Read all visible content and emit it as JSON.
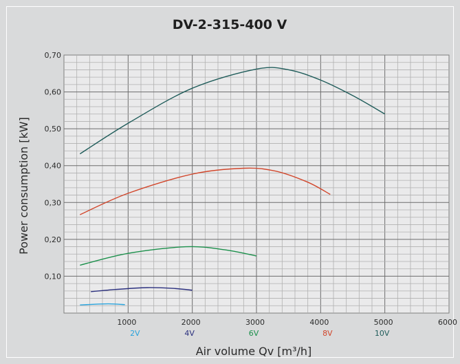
{
  "chart_data": {
    "type": "line",
    "title": "DV-2-315-400 V",
    "xlabel": "Air volume Qv [m³/h]",
    "ylabel": "Power consumption [kW]",
    "xlim": [
      0,
      6000
    ],
    "ylim": [
      0,
      0.7
    ],
    "x_ticks": [
      "1000",
      "2000",
      "3000",
      "4000",
      "5000",
      "6000"
    ],
    "y_ticks": [
      "0,10",
      "0,20",
      "0,30",
      "0,40",
      "0,50",
      "0,60",
      "0,70"
    ],
    "grid": true,
    "series": [
      {
        "name": "2V",
        "color": "#29a3dc",
        "label_x": 1150,
        "points": [
          [
            250,
            0.022
          ],
          [
            500,
            0.024
          ],
          [
            700,
            0.025
          ],
          [
            950,
            0.023
          ]
        ]
      },
      {
        "name": "4V",
        "color": "#2a2f7e",
        "label_x": 2000,
        "points": [
          [
            420,
            0.058
          ],
          [
            800,
            0.064
          ],
          [
            1300,
            0.069
          ],
          [
            1700,
            0.067
          ],
          [
            2000,
            0.062
          ]
        ]
      },
      {
        "name": "6V",
        "color": "#1a8f4a",
        "label_x": 3000,
        "points": [
          [
            250,
            0.13
          ],
          [
            1000,
            0.162
          ],
          [
            1900,
            0.18
          ],
          [
            2500,
            0.172
          ],
          [
            3000,
            0.155
          ]
        ]
      },
      {
        "name": "8V",
        "color": "#d2462b",
        "label_x": 4150,
        "points": [
          [
            250,
            0.267
          ],
          [
            1000,
            0.325
          ],
          [
            2000,
            0.377
          ],
          [
            2800,
            0.393
          ],
          [
            3300,
            0.385
          ],
          [
            3800,
            0.355
          ],
          [
            4150,
            0.322
          ]
        ]
      },
      {
        "name": "10V",
        "color": "#1f5c5a",
        "label_x": 5000,
        "points": [
          [
            250,
            0.432
          ],
          [
            1000,
            0.515
          ],
          [
            2000,
            0.61
          ],
          [
            3000,
            0.662
          ],
          [
            3500,
            0.66
          ],
          [
            4000,
            0.632
          ],
          [
            4500,
            0.59
          ],
          [
            5000,
            0.54
          ]
        ]
      }
    ]
  }
}
